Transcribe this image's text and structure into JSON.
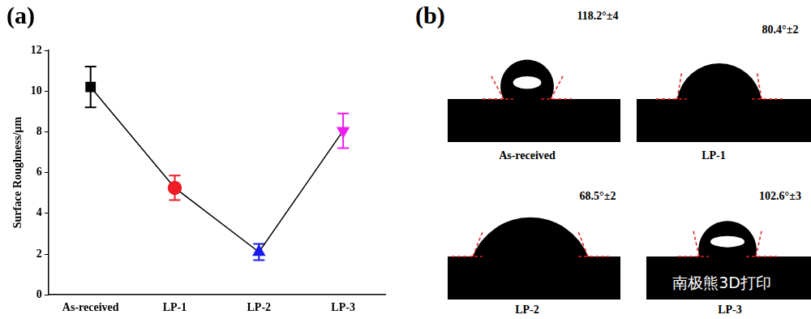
{
  "chart_data": {
    "type": "line",
    "categories": [
      "As-received",
      "LP-1",
      "LP-2",
      "LP-3"
    ],
    "values": [
      10.2,
      5.25,
      2.1,
      8.05
    ],
    "errors": [
      1.0,
      0.6,
      0.4,
      0.85
    ],
    "color": "#000000",
    "colors": [
      "#000000",
      "#ee1c25",
      "#1a1aee",
      "#ee1cee"
    ],
    "marker": [
      "square",
      "circle",
      "triangle",
      "triangle_down"
    ],
    "y_label": "Surface Roughness/μm",
    "ylim": [
      0,
      12
    ],
    "yticks": [
      0,
      2,
      4,
      6,
      8,
      10,
      12
    ],
    "grid": false
  },
  "panel_labels": [
    "(a)",
    "(b)"
  ],
  "contact_angle_images": [
    {
      "label": "As-received",
      "contact_angle": 118.2,
      "angle_label": "118.2°±4"
    },
    {
      "label": "LP-1",
      "contact_angle": 80.4,
      "angle_label": "80.4°±2"
    },
    {
      "label": "LP-2",
      "contact_angle": 68.5,
      "angle_label": "68.5°±2"
    },
    {
      "label": "LP-3",
      "contact_angle": 102.6,
      "angle_label": "102.6°±3"
    }
  ],
  "watermark": "南极熊3D打印"
}
